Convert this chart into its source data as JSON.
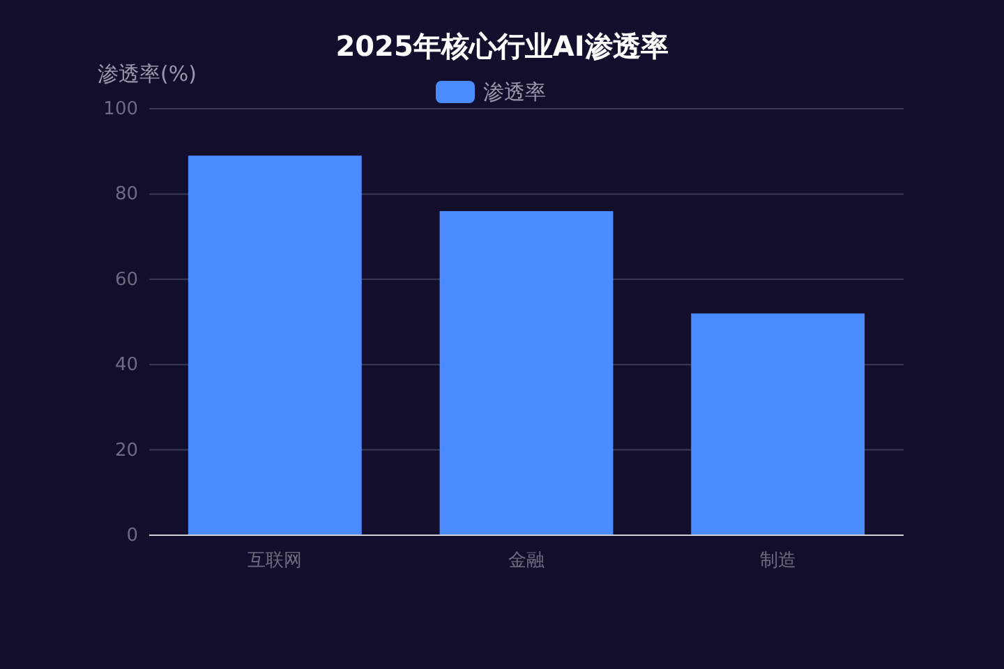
{
  "chart_data": {
    "type": "bar",
    "title": "2025年核心行业AI渗透率",
    "ylabel": "渗透率(%)",
    "categories": [
      "互联网",
      "金融",
      "制造"
    ],
    "series": [
      {
        "name": "渗透率",
        "color": "#4a8cff",
        "values": [
          89,
          76,
          52
        ]
      }
    ],
    "ylim": [
      0,
      100
    ],
    "yticks": [
      0,
      20,
      40,
      60,
      80,
      100
    ],
    "grid": "y",
    "legend": "top"
  }
}
